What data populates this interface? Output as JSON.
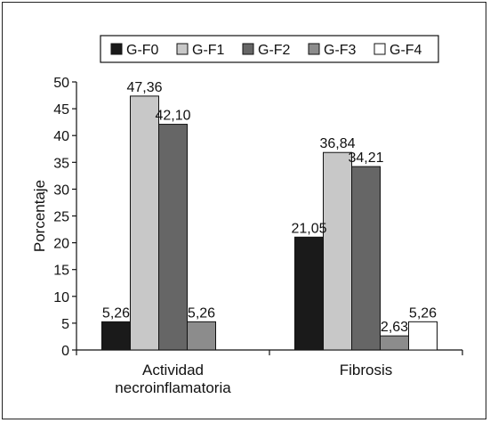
{
  "chart_data": {
    "type": "bar",
    "ylabel": "Porcentaje",
    "xlabel": "",
    "title": "",
    "ylim": [
      0,
      50
    ],
    "yticks": [
      0,
      5,
      10,
      15,
      20,
      25,
      30,
      35,
      40,
      45,
      50
    ],
    "grid": false,
    "legend_position": "top",
    "categories": [
      [
        "Actividad",
        "necroinflamatoria"
      ],
      [
        "Fibrosis"
      ]
    ],
    "series": [
      {
        "name": "G-F0",
        "color": "#1a1a1a",
        "values": [
          5.26,
          21.05
        ],
        "labels": [
          "5,26",
          "21,05"
        ]
      },
      {
        "name": "G-F1",
        "color": "#c8c8c8",
        "values": [
          47.36,
          36.84
        ],
        "labels": [
          "47,36",
          "36,84"
        ]
      },
      {
        "name": "G-F2",
        "color": "#666666",
        "values": [
          42.1,
          34.21
        ],
        "labels": [
          "42,10",
          "34,21"
        ]
      },
      {
        "name": "G-F3",
        "color": "#8c8c8c",
        "values": [
          5.26,
          2.63
        ],
        "labels": [
          "5,26",
          "2,63"
        ]
      },
      {
        "name": "G-F4",
        "color": "#ffffff",
        "values": [
          0,
          5.26
        ],
        "labels": [
          "",
          "5,26"
        ]
      }
    ]
  }
}
